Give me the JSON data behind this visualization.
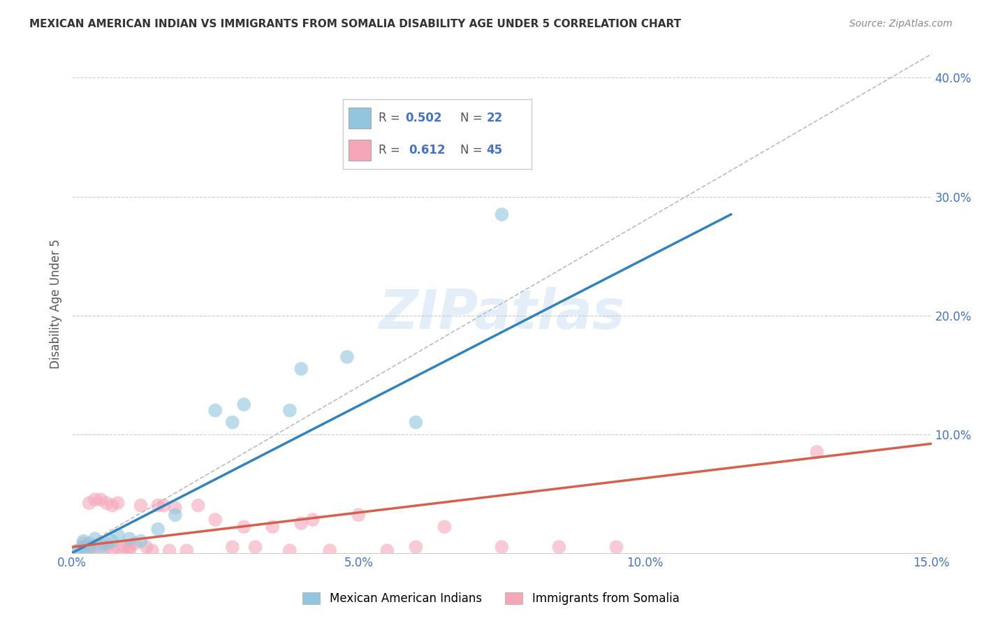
{
  "title": "MEXICAN AMERICAN INDIAN VS IMMIGRANTS FROM SOMALIA DISABILITY AGE UNDER 5 CORRELATION CHART",
  "source": "Source: ZipAtlas.com",
  "ylabel": "Disability Age Under 5",
  "xlim": [
    0.0,
    0.15
  ],
  "ylim": [
    0.0,
    0.42
  ],
  "xticks": [
    0.0,
    0.05,
    0.1,
    0.15
  ],
  "yticks": [
    0.0,
    0.1,
    0.2,
    0.3,
    0.4
  ],
  "xtick_labels": [
    "0.0%",
    "5.0%",
    "10.0%",
    "15.0%"
  ],
  "ytick_labels": [
    "",
    "10.0%",
    "20.0%",
    "30.0%",
    "40.0%"
  ],
  "blue_color": "#92c5de",
  "pink_color": "#f4a7b9",
  "blue_line_color": "#3182bd",
  "pink_line_color": "#d6604d",
  "diagonal_color": "#bbbbbb",
  "watermark": "ZIPatlas",
  "legend_R_blue": "0.502",
  "legend_N_blue": "22",
  "legend_R_pink": "0.612",
  "legend_N_pink": "45",
  "legend_label_blue": "Mexican American Indians",
  "legend_label_pink": "Immigrants from Somalia",
  "blue_scatter_x": [
    0.001,
    0.002,
    0.002,
    0.003,
    0.003,
    0.004,
    0.005,
    0.006,
    0.007,
    0.008,
    0.01,
    0.012,
    0.015,
    0.018,
    0.025,
    0.028,
    0.03,
    0.038,
    0.04,
    0.048,
    0.06,
    0.075
  ],
  "blue_scatter_y": [
    0.002,
    0.005,
    0.01,
    0.003,
    0.008,
    0.012,
    0.005,
    0.008,
    0.01,
    0.015,
    0.012,
    0.01,
    0.02,
    0.032,
    0.12,
    0.11,
    0.125,
    0.12,
    0.155,
    0.165,
    0.11,
    0.285
  ],
  "pink_scatter_x": [
    0.001,
    0.002,
    0.002,
    0.003,
    0.003,
    0.004,
    0.004,
    0.005,
    0.005,
    0.006,
    0.006,
    0.007,
    0.007,
    0.008,
    0.008,
    0.009,
    0.01,
    0.01,
    0.011,
    0.012,
    0.013,
    0.014,
    0.015,
    0.016,
    0.017,
    0.018,
    0.02,
    0.022,
    0.025,
    0.028,
    0.03,
    0.032,
    0.035,
    0.038,
    0.04,
    0.042,
    0.045,
    0.05,
    0.055,
    0.06,
    0.065,
    0.075,
    0.085,
    0.095,
    0.13
  ],
  "pink_scatter_y": [
    0.002,
    0.005,
    0.008,
    0.005,
    0.042,
    0.002,
    0.045,
    0.008,
    0.045,
    0.005,
    0.042,
    0.002,
    0.04,
    0.005,
    0.042,
    0.005,
    0.002,
    0.005,
    0.008,
    0.04,
    0.005,
    0.002,
    0.04,
    0.04,
    0.002,
    0.038,
    0.002,
    0.04,
    0.028,
    0.005,
    0.022,
    0.005,
    0.022,
    0.002,
    0.025,
    0.028,
    0.002,
    0.032,
    0.002,
    0.005,
    0.022,
    0.005,
    0.005,
    0.005,
    0.085
  ],
  "blue_line_x": [
    0.0,
    0.115
  ],
  "blue_line_y": [
    0.0,
    0.285
  ],
  "pink_line_x": [
    0.0,
    0.15
  ],
  "pink_line_y": [
    0.005,
    0.092
  ],
  "diag_line_x": [
    0.0,
    0.15
  ],
  "diag_line_y": [
    0.0,
    0.42
  ]
}
